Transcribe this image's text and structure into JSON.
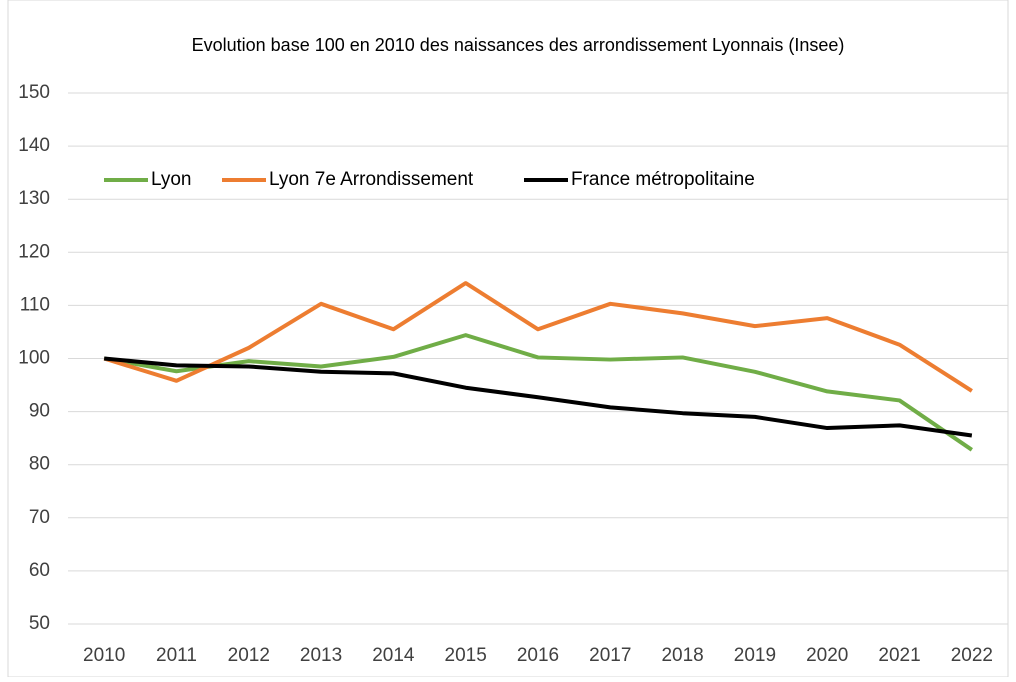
{
  "chart_data": {
    "type": "line",
    "title": "Evolution base 100 en 2010 des naissances des arrondissement Lyonnais (Insee)",
    "categories": [
      "2010",
      "2011",
      "2012",
      "2013",
      "2014",
      "2015",
      "2016",
      "2017",
      "2018",
      "2019",
      "2020",
      "2021",
      "2022"
    ],
    "series": [
      {
        "name": "Lyon",
        "color": "#70ad47",
        "values": [
          100,
          97.6,
          99.5,
          98.5,
          100.3,
          104.4,
          100.2,
          99.8,
          100.2,
          97.5,
          93.8,
          92.1,
          82.8
        ]
      },
      {
        "name": "Lyon 7e Arrondissement",
        "color": "#ed7d31",
        "values": [
          100,
          95.8,
          102,
          110.3,
          105.5,
          114.2,
          105.5,
          110.3,
          108.5,
          106.1,
          107.6,
          102.6,
          93.9
        ]
      },
      {
        "name": "France métropolitaine",
        "color": "#000000",
        "values": [
          100,
          98.7,
          98.5,
          97.5,
          97.2,
          94.5,
          92.7,
          90.8,
          89.7,
          89.0,
          86.9,
          87.4,
          85.5
        ]
      }
    ],
    "ylim": [
      50,
      150
    ],
    "yticks": [
      50,
      60,
      70,
      80,
      90,
      100,
      110,
      120,
      130,
      140,
      150
    ],
    "grid": true,
    "legend": "top-left"
  }
}
